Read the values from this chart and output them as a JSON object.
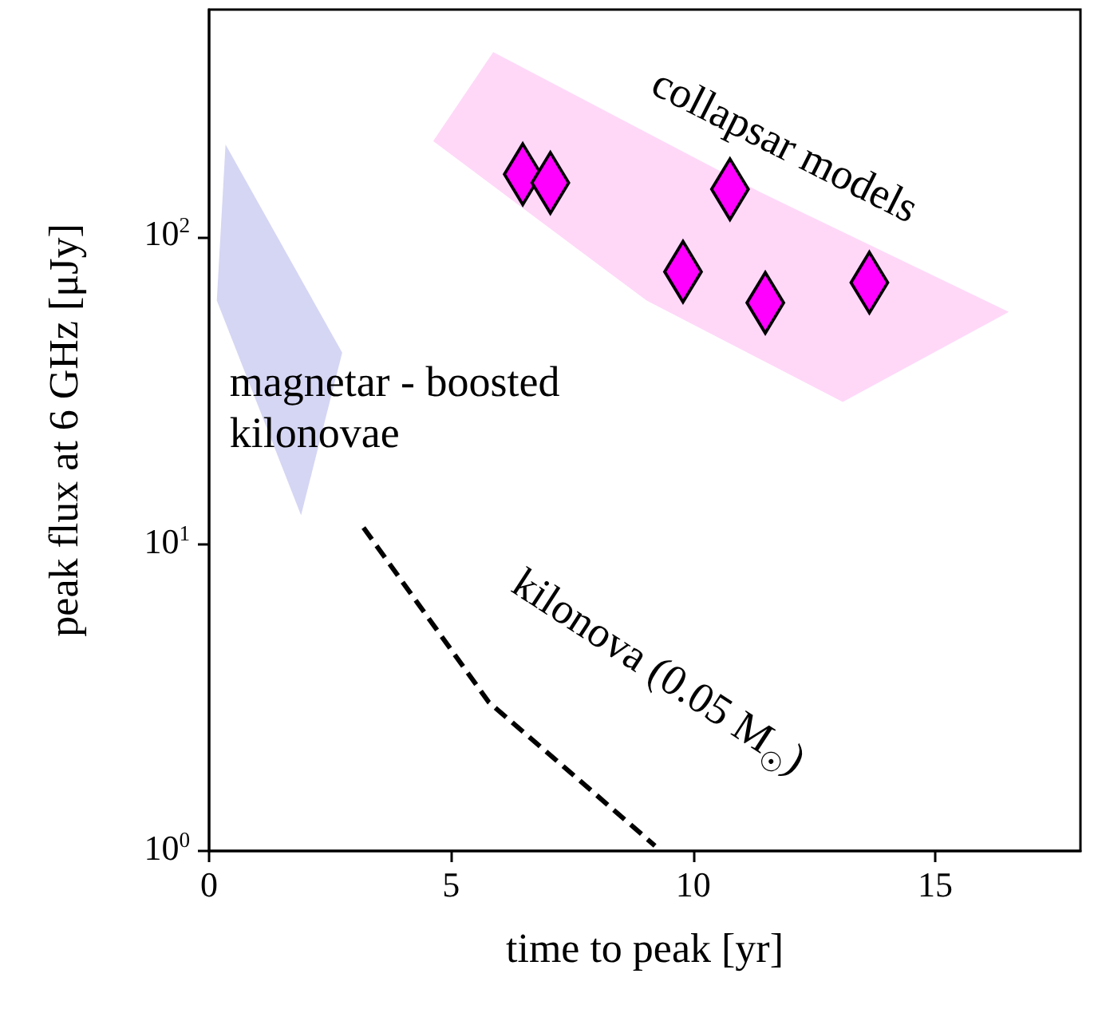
{
  "chart_data": {
    "type": "scatter",
    "xlabel": "time to peak [yr]",
    "ylabel": "peak flux at 6 GHz [μJy]",
    "log": "y",
    "xlim": [
      0,
      18
    ],
    "xticks": [
      0,
      5,
      10,
      15
    ],
    "ylim": [
      1,
      550
    ],
    "yticks": [
      {
        "value": 1,
        "label": "10$^{0}$"
      },
      {
        "value": 10,
        "label": "10$^{1}$"
      },
      {
        "value": 100,
        "label": "10$^{2}$"
      }
    ],
    "series": [
      {
        "type": "area",
        "name": "magnetar - boosted\nkilonovae",
        "color": "#d5d6f4",
        "x": [
          0.16,
          0.34,
          2.75,
          1.9
        ],
        "values": [
          62,
          200,
          42,
          12.4
        ]
      },
      {
        "type": "area",
        "name": "collapsar models",
        "color": "#ffd8f8",
        "x": [
          4.63,
          5.87,
          11.38,
          16.52,
          13.09,
          9.04
        ],
        "values": [
          205,
          400,
          140,
          57,
          29,
          62
        ]
      },
      {
        "type": "line",
        "name": "kilonova (0.05 M$_{☉}$)",
        "color": "#000000",
        "line_style": "dashed",
        "marker": "none",
        "x": [
          3.19,
          5.78,
          7.38,
          9.21
        ],
        "values": [
          11.3,
          3.05,
          1.85,
          1.04
        ]
      },
      {
        "color": "#ff00ff",
        "marker": "diamond",
        "x": [
          6.48,
          7.05,
          10.76,
          9.79,
          11.49,
          13.64
        ],
        "values": [
          160,
          150,
          143,
          77,
          61,
          71
        ]
      }
    ]
  }
}
